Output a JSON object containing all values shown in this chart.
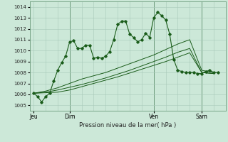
{
  "title": "Pression niveau de la mer( hPa )",
  "bg_color": "#cce8d8",
  "grid_color": "#a8c8b8",
  "line_color": "#1a5c1a",
  "ylim": [
    1004.5,
    1014.5
  ],
  "yticks": [
    1005,
    1006,
    1007,
    1008,
    1009,
    1010,
    1011,
    1012,
    1013,
    1014
  ],
  "day_positions": [
    0,
    18,
    60,
    84
  ],
  "day_labels": [
    "Jeu",
    "Dim",
    "Ven",
    "Sam"
  ],
  "xlim": [
    -2,
    96
  ],
  "series1_x": [
    0,
    2,
    4,
    6,
    8,
    10,
    12,
    14,
    16,
    18,
    20,
    22,
    24,
    26,
    28,
    30,
    32,
    34,
    36,
    38,
    40,
    42,
    44,
    46,
    48,
    50,
    52,
    54,
    56,
    58,
    60,
    62,
    64,
    66,
    68,
    70,
    72,
    74,
    76,
    78,
    80,
    82,
    84,
    86,
    88,
    90,
    92
  ],
  "series1_y": [
    1006.1,
    1005.8,
    1005.3,
    1005.8,
    1006.1,
    1007.2,
    1008.2,
    1008.9,
    1009.5,
    1010.8,
    1010.9,
    1010.2,
    1010.2,
    1010.5,
    1010.5,
    1009.3,
    1009.4,
    1009.3,
    1009.5,
    1009.9,
    1011.0,
    1012.4,
    1012.7,
    1012.7,
    1011.5,
    1011.2,
    1010.8,
    1011.0,
    1011.6,
    1011.2,
    1013.0,
    1013.5,
    1013.2,
    1012.8,
    1011.5,
    1009.2,
    1008.2,
    1008.1,
    1008.0,
    1008.0,
    1008.0,
    1007.9,
    1007.9,
    1008.1,
    1008.2,
    1008.0,
    1008.0
  ],
  "series2_x": [
    0,
    6,
    12,
    18,
    24,
    30,
    36,
    42,
    48,
    54,
    60,
    66,
    72,
    78,
    84,
    90
  ],
  "series2_y": [
    1006.1,
    1006.3,
    1006.6,
    1007.0,
    1007.4,
    1007.7,
    1008.0,
    1008.4,
    1008.8,
    1009.2,
    1009.6,
    1010.1,
    1010.6,
    1011.0,
    1008.2,
    1008.0
  ],
  "series3_x": [
    0,
    6,
    12,
    18,
    24,
    30,
    36,
    42,
    48,
    54,
    60,
    66,
    72,
    78,
    84,
    90
  ],
  "series3_y": [
    1006.1,
    1006.2,
    1006.4,
    1006.65,
    1006.9,
    1007.2,
    1007.5,
    1007.85,
    1008.2,
    1008.6,
    1009.0,
    1009.4,
    1009.85,
    1010.2,
    1008.0,
    1007.9
  ],
  "series4_x": [
    0,
    6,
    12,
    18,
    24,
    30,
    36,
    42,
    48,
    54,
    60,
    66,
    72,
    78,
    84,
    90
  ],
  "series4_y": [
    1006.1,
    1006.15,
    1006.2,
    1006.4,
    1006.7,
    1007.0,
    1007.3,
    1007.6,
    1007.95,
    1008.3,
    1008.65,
    1009.0,
    1009.4,
    1009.8,
    1008.0,
    1007.9
  ]
}
